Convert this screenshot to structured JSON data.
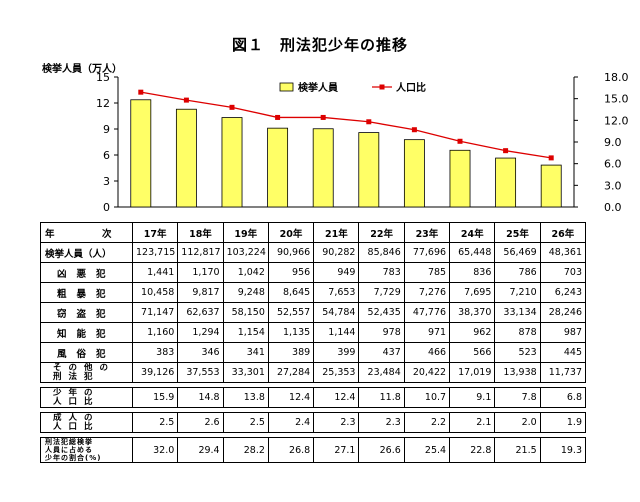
{
  "title": "図１　刑法犯少年の推移",
  "y_axis_label": "検挙人員（万人）",
  "chart_data": {
    "type": "bar",
    "categories": [
      "17年",
      "18年",
      "19年",
      "20年",
      "21年",
      "22年",
      "23年",
      "24年",
      "25年",
      "26年"
    ],
    "series": [
      {
        "name": "検挙人員",
        "kind": "bar",
        "axis": "left",
        "color": "#ffff66",
        "values": [
          12.3715,
          11.2817,
          10.3224,
          9.0966,
          9.0282,
          8.5846,
          7.7696,
          6.5448,
          5.6469,
          4.8361
        ]
      },
      {
        "name": "人口比",
        "kind": "line",
        "axis": "right",
        "color": "#dd0000",
        "values": [
          15.9,
          14.8,
          13.8,
          12.4,
          12.4,
          11.8,
          10.7,
          9.1,
          7.8,
          6.8
        ]
      }
    ],
    "ylim_left": [
      0,
      15
    ],
    "left_ticks": [
      "0",
      "3",
      "6",
      "9",
      "12",
      "15"
    ],
    "ylim_right": [
      0,
      18
    ],
    "right_ticks": [
      "0.0",
      "3.0",
      "6.0",
      "9.0",
      "12.0",
      "15.0",
      "18.0"
    ],
    "legend": "top-right",
    "grid": false
  },
  "table": {
    "header_label": "年　　　　　次",
    "years": [
      "17年",
      "18年",
      "19年",
      "20年",
      "21年",
      "22年",
      "23年",
      "24年",
      "25年",
      "26年"
    ],
    "rows": [
      {
        "label": "検挙人員（人）",
        "style": "lab",
        "values": [
          "123,715",
          "112,817",
          "103,224",
          "90,966",
          "90,282",
          "85,846",
          "77,696",
          "65,448",
          "56,469",
          "48,361"
        ]
      },
      {
        "label": "凶悪犯",
        "style": "sub",
        "values": [
          "1,441",
          "1,170",
          "1,042",
          "956",
          "949",
          "783",
          "785",
          "836",
          "786",
          "703"
        ]
      },
      {
        "label": "粗暴犯",
        "style": "sub",
        "values": [
          "10,458",
          "9,817",
          "9,248",
          "8,645",
          "7,653",
          "7,729",
          "7,276",
          "7,695",
          "7,210",
          "6,243"
        ]
      },
      {
        "label": "窃盗犯",
        "style": "sub",
        "values": [
          "71,147",
          "62,637",
          "58,150",
          "52,557",
          "54,784",
          "52,435",
          "47,776",
          "38,370",
          "33,134",
          "28,246"
        ]
      },
      {
        "label": "知能犯",
        "style": "sub",
        "values": [
          "1,160",
          "1,294",
          "1,154",
          "1,135",
          "1,144",
          "978",
          "971",
          "962",
          "878",
          "987"
        ]
      },
      {
        "label": "風俗犯",
        "style": "sub",
        "values": [
          "383",
          "346",
          "341",
          "389",
          "399",
          "437",
          "466",
          "566",
          "523",
          "445"
        ]
      },
      {
        "label": "その他の\n刑法犯",
        "style": "two",
        "values": [
          "39,126",
          "37,553",
          "33,301",
          "27,284",
          "25,353",
          "23,484",
          "20,422",
          "17,019",
          "13,938",
          "11,737"
        ]
      }
    ],
    "ratio_rows": [
      {
        "label": "少年の\n人口比",
        "style": "two",
        "values": [
          "15.9",
          "14.8",
          "13.8",
          "12.4",
          "12.4",
          "11.8",
          "10.7",
          "9.1",
          "7.8",
          "6.8"
        ]
      },
      {
        "label": "成人の\n人口比",
        "style": "two",
        "values": [
          "2.5",
          "2.6",
          "2.5",
          "2.4",
          "2.3",
          "2.3",
          "2.2",
          "2.1",
          "2.0",
          "1.9"
        ]
      },
      {
        "label": "刑法犯総検挙\n人員に占める\n少年の割合(%)",
        "style": "small",
        "values": [
          "32.0",
          "29.4",
          "28.2",
          "26.8",
          "27.1",
          "26.6",
          "25.4",
          "22.8",
          "21.5",
          "19.3"
        ]
      }
    ]
  }
}
